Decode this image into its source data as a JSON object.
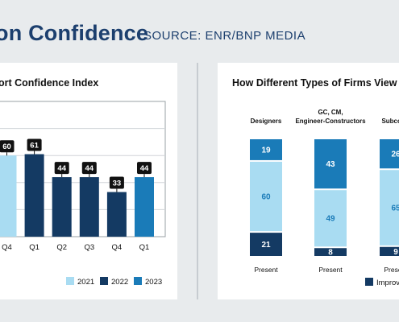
{
  "header": {
    "title": "on Confidence",
    "source": "SOURCE: ENR/BNP MEDIA"
  },
  "colors": {
    "y2021": "#a9dcf2",
    "y2022": "#143a63",
    "y2023": "#1a7bb8",
    "background": "#e8ebed"
  },
  "chart_data": [
    {
      "type": "bar",
      "title": "ort Confidence Index",
      "categories": [
        "Q4",
        "Q1",
        "Q2",
        "Q3",
        "Q4",
        "Q1"
      ],
      "values": [
        60,
        61,
        44,
        44,
        33,
        44
      ],
      "bar_years": [
        "2021",
        "2022",
        "2022",
        "2022",
        "2022",
        "2023"
      ],
      "ylim": [
        0,
        100
      ],
      "legend": [
        {
          "label": "2021",
          "color": "#a9dcf2"
        },
        {
          "label": "2022",
          "color": "#143a63"
        },
        {
          "label": "2023",
          "color": "#1a7bb8"
        }
      ],
      "legend_position": "bottom-right",
      "grid": true
    },
    {
      "type": "bar",
      "stacked": true,
      "title": "How Different Types of Firms View t",
      "categories": [
        "Designers",
        "GC, CM, Engineer-Constructors",
        "Subcontr"
      ],
      "category_lines": [
        [
          "Designers"
        ],
        [
          "GC, CM,",
          "Engineer-Constructors"
        ],
        [
          "Subcontr"
        ]
      ],
      "x_labels": [
        "Present",
        "Present",
        "Present"
      ],
      "series": [
        {
          "name": "Improvi",
          "values": [
            21,
            8,
            9
          ],
          "color": "#143a63"
        },
        {
          "values": [
            60,
            49,
            65
          ],
          "color": "#a9dcf2"
        },
        {
          "values": [
            19,
            43,
            26
          ],
          "color": "#1a7bb8"
        }
      ],
      "legend_position": "bottom-right"
    }
  ]
}
